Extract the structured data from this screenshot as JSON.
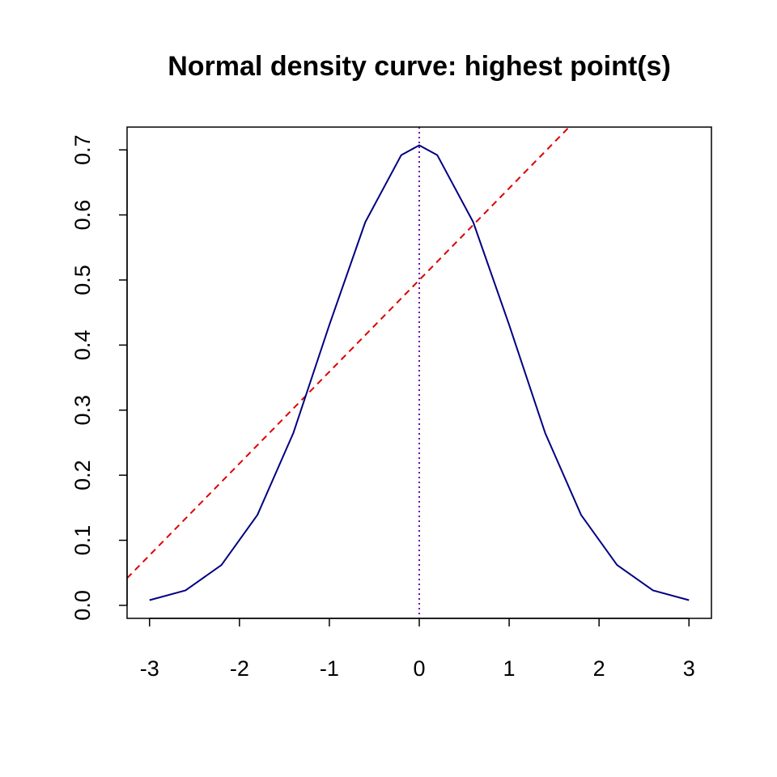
{
  "chart_data": {
    "type": "line",
    "title": "Normal density curve: highest point(s)",
    "xlabel": "",
    "ylabel": "",
    "xlim": [
      -3.25,
      3.25
    ],
    "ylim": [
      -0.02,
      0.735
    ],
    "x_ticks": [
      -3,
      -2,
      -1,
      0,
      1,
      2,
      3
    ],
    "x_tick_labels": [
      "-3",
      "-2",
      "-1",
      "0",
      "1",
      "2",
      "3"
    ],
    "y_ticks": [
      0.0,
      0.1,
      0.2,
      0.3,
      0.4,
      0.5,
      0.6,
      0.7
    ],
    "y_tick_labels": [
      "0.0",
      "0.1",
      "0.2",
      "0.3",
      "0.4",
      "0.5",
      "0.6",
      "0.7"
    ],
    "grid": false,
    "legend": "none",
    "series": [
      {
        "style": "solid",
        "color": "#000080",
        "x": [
          -3,
          -2.6,
          -2.2,
          -1.8,
          -1.4,
          -1.0,
          -0.6,
          -0.2,
          0,
          0.2,
          0.6,
          1.0,
          1.4,
          1.8,
          2.2,
          2.6,
          3
        ],
        "y": [
          0.008,
          0.023,
          0.062,
          0.139,
          0.265,
          0.431,
          0.589,
          0.692,
          0.707,
          0.692,
          0.589,
          0.431,
          0.265,
          0.139,
          0.062,
          0.023,
          0.008
        ]
      }
    ],
    "reference_lines": [
      {
        "kind": "abline",
        "intercept": 0.5,
        "slope": 0.141,
        "style": "dashed",
        "color": "#dd0000"
      },
      {
        "kind": "vline",
        "x": 0,
        "style": "dotted",
        "color": "#6a0dad"
      }
    ]
  }
}
